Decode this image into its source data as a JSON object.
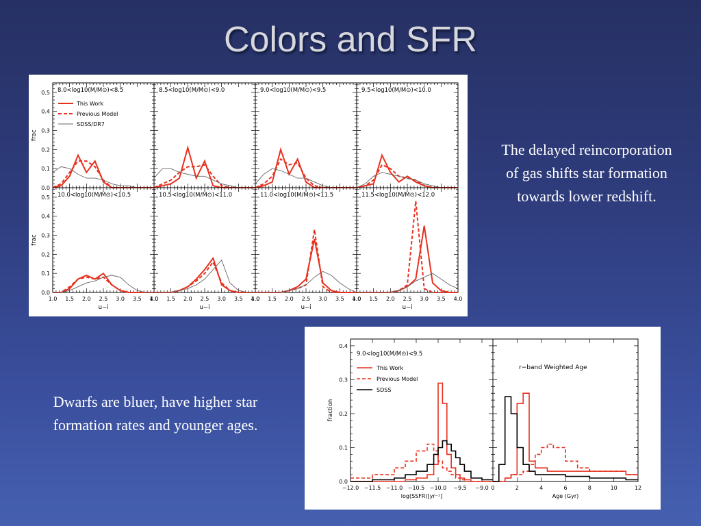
{
  "slide": {
    "title": "Colors and SFR",
    "note_right": "The delayed reincorporation of gas shifts star formation towards lower redshift.",
    "note_left": "Dwarfs are bluer, have higher star formation rates and younger ages."
  },
  "colors": {
    "this_work": "#e8301e",
    "previous_model": "#e8301e",
    "sdss_dr7": "#666666",
    "sdss": "#000000"
  },
  "chart_data": [
    {
      "type": "line",
      "xlabel": "u−i",
      "ylabel": "frac",
      "xlim": [
        1.0,
        4.0
      ],
      "ylim": [
        0.0,
        0.55
      ],
      "xticks": [
        "1.0",
        "1.5",
        "2.0",
        "2.5",
        "3.0",
        "3.5",
        "4.0"
      ],
      "yticks": [
        "0.0",
        "0.1",
        "0.2",
        "0.3",
        "0.4",
        "0.5"
      ],
      "legend": [
        "This Work",
        "Previous Model",
        "SDSS/DR7"
      ],
      "legend_position": "top-left of first panel",
      "x": [
        1.0,
        1.25,
        1.5,
        1.75,
        2.0,
        2.25,
        2.5,
        2.75,
        3.0,
        3.25,
        3.5,
        3.75,
        4.0
      ],
      "panels": [
        {
          "label": "8.0<log10(M/M⊙)<8.5",
          "series": [
            {
              "name": "This Work",
              "values": [
                0,
                0.01,
                0.06,
                0.17,
                0.08,
                0.14,
                0.03,
                0,
                0,
                0,
                0,
                0,
                0
              ]
            },
            {
              "name": "Previous Model",
              "values": [
                0,
                0.02,
                0.08,
                0.14,
                0.14,
                0.11,
                0.04,
                0,
                0,
                0,
                0,
                0,
                0
              ]
            },
            {
              "name": "SDSS/DR7",
              "values": [
                0.08,
                0.11,
                0.1,
                0.07,
                0.05,
                0.05,
                0.04,
                0.02,
                0.01,
                0.01,
                0,
                0,
                0
              ]
            }
          ]
        },
        {
          "label": "8.5<log10(M/M⊙)<9.0",
          "series": [
            {
              "name": "This Work",
              "values": [
                0,
                0.01,
                0.02,
                0.05,
                0.21,
                0.05,
                0.14,
                0.01,
                0,
                0,
                0,
                0,
                0
              ]
            },
            {
              "name": "Previous Model",
              "values": [
                0,
                0.02,
                0.04,
                0.08,
                0.11,
                0.11,
                0.12,
                0.06,
                0.01,
                0,
                0,
                0,
                0
              ]
            },
            {
              "name": "SDSS/DR7",
              "values": [
                0.05,
                0.1,
                0.1,
                0.08,
                0.07,
                0.06,
                0.06,
                0.04,
                0.02,
                0.01,
                0,
                0,
                0
              ]
            }
          ]
        },
        {
          "label": "9.0<log10(M/M⊙)<9.5",
          "series": [
            {
              "name": "This Work",
              "values": [
                0,
                0.01,
                0.03,
                0.2,
                0.07,
                0.15,
                0.03,
                0,
                0,
                0,
                0,
                0,
                0
              ]
            },
            {
              "name": "Previous Model",
              "values": [
                0,
                0.02,
                0.06,
                0.15,
                0.12,
                0.13,
                0.05,
                0.01,
                0,
                0,
                0,
                0,
                0
              ]
            },
            {
              "name": "SDSS/DR7",
              "values": [
                0.02,
                0.07,
                0.1,
                0.09,
                0.07,
                0.05,
                0.05,
                0.03,
                0.01,
                0,
                0,
                0,
                0
              ]
            }
          ]
        },
        {
          "label": "9.5<log10(M/M⊙)<10.0",
          "series": [
            {
              "name": "This Work",
              "values": [
                0,
                0.01,
                0.02,
                0.17,
                0.08,
                0.03,
                0.06,
                0.03,
                0.01,
                0,
                0,
                0,
                0
              ]
            },
            {
              "name": "Previous Model",
              "values": [
                0,
                0.01,
                0.04,
                0.12,
                0.1,
                0.06,
                0.05,
                0.04,
                0.01,
                0,
                0,
                0,
                0
              ]
            },
            {
              "name": "SDSS/DR7",
              "values": [
                0,
                0.02,
                0.06,
                0.08,
                0.07,
                0.06,
                0.05,
                0.04,
                0.02,
                0.01,
                0,
                0,
                0
              ]
            }
          ]
        },
        {
          "label": "10.0<log10(M/M⊙)<10.5",
          "series": [
            {
              "name": "This Work",
              "values": [
                0,
                0,
                0.02,
                0.07,
                0.09,
                0.07,
                0.1,
                0.04,
                0.01,
                0,
                0,
                0,
                0
              ]
            },
            {
              "name": "Previous Model",
              "values": [
                0,
                0,
                0.03,
                0.07,
                0.08,
                0.07,
                0.08,
                0.04,
                0.01,
                0,
                0,
                0,
                0
              ]
            },
            {
              "name": "SDSS/DR7",
              "values": [
                0,
                0,
                0.01,
                0.03,
                0.05,
                0.06,
                0.08,
                0.09,
                0.08,
                0.04,
                0.01,
                0,
                0
              ]
            }
          ]
        },
        {
          "label": "10.5<log10(M/M⊙)<11.0",
          "series": [
            {
              "name": "This Work",
              "values": [
                0,
                0,
                0,
                0.01,
                0.03,
                0.07,
                0.12,
                0.18,
                0.04,
                0.01,
                0,
                0,
                0
              ]
            },
            {
              "name": "Previous Model",
              "values": [
                0,
                0,
                0,
                0.01,
                0.03,
                0.06,
                0.1,
                0.16,
                0.05,
                0.01,
                0,
                0,
                0
              ]
            },
            {
              "name": "SDSS/DR7",
              "values": [
                0,
                0,
                0,
                0.01,
                0.02,
                0.04,
                0.07,
                0.12,
                0.17,
                0.05,
                0.01,
                0,
                0
              ]
            }
          ]
        },
        {
          "label": "11.0<log10(M/M⊙)<11.5",
          "series": [
            {
              "name": "This Work",
              "values": [
                0,
                0,
                0,
                0,
                0.01,
                0.03,
                0.07,
                0.28,
                0.05,
                0.01,
                0,
                0,
                0
              ]
            },
            {
              "name": "Previous Model",
              "values": [
                0,
                0,
                0,
                0,
                0.01,
                0.02,
                0.04,
                0.33,
                0.03,
                0,
                0,
                0,
                0
              ]
            },
            {
              "name": "SDSS/DR7",
              "values": [
                0,
                0,
                0,
                0,
                0.01,
                0.02,
                0.04,
                0.08,
                0.11,
                0.09,
                0.05,
                0.02,
                0
              ]
            }
          ]
        },
        {
          "label": "11.5<log10(M/M⊙)<12.0",
          "series": [
            {
              "name": "This Work",
              "values": [
                0,
                0,
                0,
                0,
                0,
                0.01,
                0.03,
                0.07,
                0.35,
                0.05,
                0.01,
                0,
                0
              ]
            },
            {
              "name": "Previous Model",
              "values": [
                0,
                0,
                0,
                0,
                0,
                0.01,
                0.04,
                0.48,
                0.02,
                0,
                0,
                0,
                0
              ]
            },
            {
              "name": "SDSS/DR7",
              "values": [
                0,
                0,
                0,
                0,
                0,
                0.01,
                0.03,
                0.06,
                0.08,
                0.1,
                0.07,
                0.04,
                0.02
              ]
            }
          ]
        }
      ]
    },
    {
      "type": "line",
      "label": "9.0<log10(M/M⊙)<9.5",
      "legend": [
        "This Work",
        "Previous Model",
        "SDSS"
      ],
      "legend_position": "top-left",
      "ylabel": "fraction",
      "ylim": [
        0.0,
        0.42
      ],
      "yticks": [
        "0.0",
        "0.1",
        "0.2",
        "0.3",
        "0.4"
      ],
      "panels": [
        {
          "xlabel": "log(SSFR)[yr⁻¹]",
          "xlim": [
            -12.0,
            -8.75
          ],
          "xticks": [
            "−12.0",
            "−11.5",
            "−11.0",
            "−10.5",
            "−10.0",
            "−9.5",
            "−9.0"
          ],
          "x": [
            -12.0,
            -11.5,
            -11.0,
            -10.75,
            -10.5,
            -10.25,
            -10.1,
            -10.0,
            -9.9,
            -9.8,
            -9.7,
            -9.6,
            -9.5,
            -9.4,
            -9.25,
            -9.0,
            -8.75
          ],
          "series": [
            {
              "name": "This Work",
              "values": [
                0,
                0,
                0,
                0.005,
                0.01,
                0.02,
                0.05,
                0.29,
                0.23,
                0.08,
                0.04,
                0.02,
                0.01,
                0.005,
                0,
                0,
                0
              ]
            },
            {
              "name": "Previous Model",
              "values": [
                0.01,
                0.02,
                0.04,
                0.06,
                0.09,
                0.11,
                0.09,
                0.06,
                0.04,
                0.03,
                0.02,
                0.01,
                0.005,
                0,
                0,
                0,
                0
              ]
            },
            {
              "name": "SDSS",
              "values": [
                0,
                0.005,
                0.01,
                0.02,
                0.03,
                0.05,
                0.08,
                0.1,
                0.12,
                0.11,
                0.09,
                0.07,
                0.05,
                0.03,
                0.01,
                0.005,
                0
              ]
            }
          ]
        },
        {
          "xlabel": "Age (Gyr)",
          "title": "r−band Weighted Age",
          "xlim": [
            0,
            12
          ],
          "xticks": [
            "0",
            "2",
            "4",
            "6",
            "8",
            "10",
            "12"
          ],
          "x": [
            0,
            0.5,
            1.0,
            1.5,
            2.0,
            2.5,
            3.0,
            3.5,
            4.0,
            4.5,
            5.0,
            6.0,
            7.0,
            8.0,
            9.0,
            10.0,
            11.0,
            12.0
          ],
          "series": [
            {
              "name": "This Work",
              "values": [
                0,
                0,
                0.01,
                0.02,
                0.23,
                0.26,
                0.06,
                0.04,
                0.04,
                0.03,
                0.03,
                0.03,
                0.03,
                0.03,
                0.03,
                0.03,
                0.02,
                0.02
              ]
            },
            {
              "name": "Previous Model",
              "values": [
                0,
                0,
                0.01,
                0.02,
                0.02,
                0.03,
                0.05,
                0.08,
                0.1,
                0.11,
                0.1,
                0.06,
                0.04,
                0.03,
                0.03,
                0.03,
                0.02,
                0.02
              ]
            },
            {
              "name": "SDSS",
              "values": [
                0,
                0.05,
                0.25,
                0.2,
                0.1,
                0.05,
                0.03,
                0.02,
                0.02,
                0.02,
                0.02,
                0.015,
                0.015,
                0.01,
                0.01,
                0.01,
                0.005,
                0
              ]
            }
          ]
        }
      ]
    }
  ]
}
